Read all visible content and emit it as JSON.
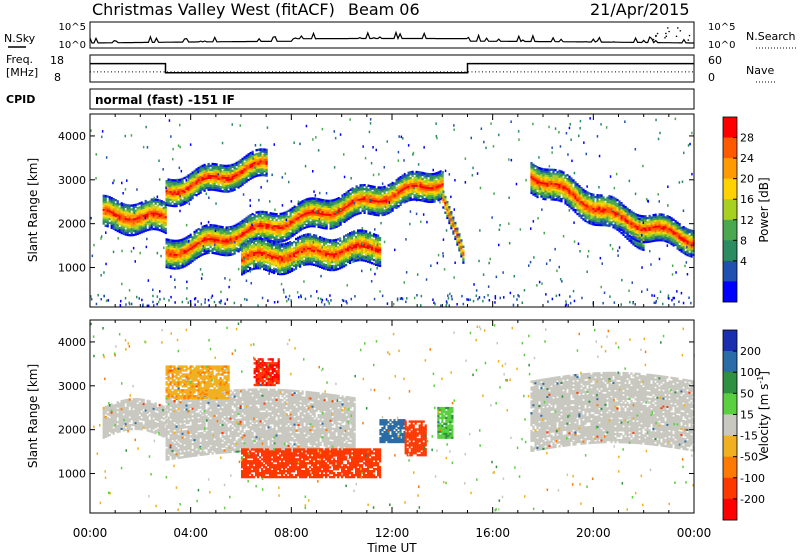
{
  "header": {
    "station": "Christmas Valley West (fitACF)",
    "beam": "Beam 06",
    "date": "21/Apr/2015"
  },
  "nsky_panel": {
    "label": "N.Sky",
    "right_label": "N.Search",
    "y_ticks": [
      "10^5",
      "10^0"
    ]
  },
  "freq_panel": {
    "label_line1": "Freq.",
    "label_line2": "[MHz]",
    "left_ticks": [
      "18",
      "8"
    ],
    "right_ticks": [
      "60",
      "0"
    ],
    "right_label": "Nave",
    "frequency_mhz": {
      "x_hours": [
        0,
        3,
        3,
        15,
        15,
        24
      ],
      "values": [
        15,
        15,
        10.8,
        10.8,
        15,
        15
      ]
    },
    "nave_dotted_level": 0.35
  },
  "cpid_panel": {
    "label": "CPID",
    "program": "normal (fast) -151 IF"
  },
  "chart_data": [
    {
      "type": "heatmap",
      "name": "power",
      "ylabel": "Slant Range [km]",
      "ylim": [
        100,
        4500
      ],
      "y_ticks": [
        1000,
        2000,
        3000,
        4000
      ],
      "xlim": [
        0,
        24
      ],
      "colorbar": {
        "label": "Power [dB]",
        "ticks": [
          "28",
          "24",
          "20",
          "16",
          "12",
          "8",
          "4"
        ],
        "colors": [
          "#ff0000",
          "#ff5a00",
          "#ff9a00",
          "#ffd200",
          "#a8d020",
          "#4aa850",
          "#2a8c60",
          "#2050b0",
          "#0000ff"
        ]
      },
      "echo_bands": [
        {
          "x": [
            0.5,
            3.0
          ],
          "y_start": 2200,
          "y_end": 2100,
          "width": 350
        },
        {
          "x": [
            3.0,
            7.0
          ],
          "y_start": 2700,
          "y_end": 3350,
          "width": 300
        },
        {
          "x": [
            3.0,
            14.0
          ],
          "y_start": 1300,
          "y_end": 2950,
          "width": 320
        },
        {
          "x": [
            6.0,
            11.5
          ],
          "y_start": 1200,
          "y_end": 1450,
          "width": 350
        },
        {
          "x": [
            14.0,
            14.8
          ],
          "y_start": 2600,
          "y_end": 1200,
          "width": 200
        },
        {
          "x": [
            17.5,
            22.0
          ],
          "y_start": 3100,
          "y_end": 1800,
          "width": 350
        },
        {
          "x": [
            21.0,
            24.0
          ],
          "y_start": 2100,
          "y_end": 1600,
          "width": 300
        }
      ]
    },
    {
      "type": "heatmap",
      "name": "velocity",
      "ylabel": "Slant Range [km]",
      "ylim": [
        100,
        4500
      ],
      "y_ticks": [
        1000,
        2000,
        3000,
        4000
      ],
      "xlim": [
        0,
        24
      ],
      "xlabel": "Time UT",
      "x_ticks": [
        "00:00",
        "04:00",
        "08:00",
        "12:00",
        "16:00",
        "20:00",
        "00:00"
      ],
      "x_tick_hours": [
        0,
        4,
        8,
        12,
        16,
        20,
        24
      ],
      "colorbar": {
        "label": "Velocity [m s",
        "label_exponent": "-1",
        "label_close": "]",
        "ticks": [
          "200",
          "100",
          "50",
          "15",
          "-15",
          "-50",
          "-100",
          "-200"
        ],
        "colors": [
          "#1a2fb0",
          "#2a6ca8",
          "#2e9040",
          "#5ad040",
          "#c8c8c0",
          "#f0b020",
          "#ff7a00",
          "#ff3800",
          "#ff0000"
        ]
      },
      "regions": [
        {
          "x": [
            0.5,
            3.0
          ],
          "y": [
            1800,
            2500
          ],
          "velocity": 0
        },
        {
          "x": [
            3.0,
            10.5
          ],
          "y": [
            1300,
            2700
          ],
          "velocity": 0
        },
        {
          "x": [
            3.0,
            5.5
          ],
          "y": [
            2700,
            3450
          ],
          "velocity": -40
        },
        {
          "x": [
            6.5,
            7.5
          ],
          "y": [
            3000,
            3600
          ],
          "velocity": -200
        },
        {
          "x": [
            6.0,
            11.5
          ],
          "y": [
            900,
            1550
          ],
          "velocity": -150
        },
        {
          "x": [
            11.5,
            12.5
          ],
          "y": [
            1700,
            2200
          ],
          "velocity": 120
        },
        {
          "x": [
            12.5,
            13.3
          ],
          "y": [
            1400,
            2200
          ],
          "velocity": -120
        },
        {
          "x": [
            13.8,
            14.4
          ],
          "y": [
            1800,
            2500
          ],
          "velocity": 40
        },
        {
          "x": [
            17.5,
            24.0
          ],
          "y": [
            1500,
            3100
          ],
          "velocity": 0
        }
      ]
    }
  ]
}
